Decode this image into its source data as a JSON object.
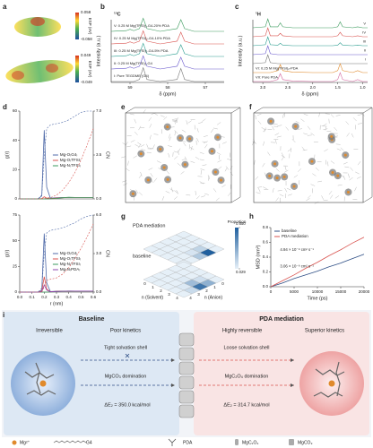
{
  "panel_labels": [
    "a",
    "b",
    "c",
    "d",
    "e",
    "f",
    "g",
    "h",
    "i"
  ],
  "esp": [
    {
      "ticks": [
        0.058,
        -0.058
      ],
      "label": "ESP (eV)"
    },
    {
      "ticks": [
        0.049,
        -0.049
      ],
      "label": "ESP (eV)"
    }
  ],
  "chart_data": [
    {
      "type": "spectra",
      "title": "¹³C",
      "xlabel": "δ (ppm)",
      "ylabel": "Intensity (a.u.)",
      "series_label_side": "left",
      "x": [
        59.5,
        59.1,
        59.0,
        58.9,
        58.75,
        58.65,
        58.55,
        58.2,
        57.75,
        57.65,
        57.55,
        57.3,
        56.5
      ],
      "xlim": [
        59.5,
        56.5
      ],
      "xticks": [
        59,
        58,
        57
      ],
      "series": [
        {
          "name": "V: 0.25 M Mg(TFSI)₂-G4-20% PDA",
          "color": "#3a9a5c",
          "values": [
            0,
            0.05,
            0.15,
            0.05,
            0.2,
            0.95,
            0.2,
            0,
            0.2,
            0.85,
            0.2,
            0,
            0
          ]
        },
        {
          "name": "IV: 0.25 M Mg(TFSI)₂-G4-10% PDA",
          "color": "#d9534f",
          "values": [
            0,
            0.05,
            0.15,
            0.05,
            0.2,
            0.95,
            0.2,
            0,
            0.2,
            0.85,
            0.2,
            0,
            0
          ]
        },
        {
          "name": "III: 0.25 M Mg(TFSI)₂-G4-5% PDA",
          "color": "#2a9d8f",
          "values": [
            0,
            0.05,
            0.15,
            0.05,
            0.2,
            0.95,
            0.2,
            0,
            0.2,
            0.85,
            0.2,
            0,
            0
          ]
        },
        {
          "name": "II: 0.25 M Mg(TFSI)₂-G4",
          "color": "#6a5acd",
          "values": [
            0,
            0.05,
            0.15,
            0.05,
            0.2,
            0.95,
            0.2,
            0,
            0.2,
            0.85,
            0.2,
            0,
            0
          ]
        },
        {
          "name": "I: Pure TEGDME (G4)",
          "color": "#777777",
          "values": [
            0,
            0,
            0,
            0,
            0.15,
            1,
            0.15,
            0,
            0.15,
            0.95,
            0.15,
            0,
            0
          ]
        }
      ]
    },
    {
      "type": "spectra",
      "title": "¹H",
      "xlabel": "δ (ppm)",
      "ylabel": "Intensity (a.u.)",
      "series_label_side": "right",
      "x": [
        3.2,
        2.95,
        2.9,
        2.85,
        2.7,
        2.65,
        2.6,
        2.4,
        2.0,
        1.6,
        1.5,
        1.45,
        1.4,
        1.2,
        1.1,
        1.0,
        0.9
      ],
      "xlim": [
        3.2,
        0.9
      ],
      "xticks": [
        {
          "value": 3,
          "label": "3.0"
        },
        2.5,
        {
          "value": 2,
          "label": "2.0"
        },
        1.5,
        {
          "value": 1,
          "label": "1.0"
        }
      ],
      "series": [
        {
          "name": "V",
          "color": "#3a9a5c",
          "values": [
            0,
            0.1,
            0.9,
            0.1,
            0.1,
            0.5,
            0.1,
            0,
            0,
            0,
            0.1,
            0.6,
            0.1,
            0,
            0.1,
            0,
            0
          ]
        },
        {
          "name": "IV",
          "color": "#d9534f",
          "values": [
            0,
            0.1,
            0.9,
            0.1,
            0.1,
            0.35,
            0.1,
            0,
            0,
            0,
            0.1,
            0.45,
            0.1,
            0,
            0.1,
            0,
            0
          ]
        },
        {
          "name": "III",
          "color": "#2a9d8f",
          "values": [
            0,
            0.1,
            0.9,
            0.1,
            0.05,
            0.25,
            0.05,
            0,
            0,
            0,
            0.05,
            0.3,
            0.05,
            0,
            0.05,
            0,
            0
          ]
        },
        {
          "name": "II",
          "color": "#6a5acd",
          "values": [
            0,
            0.1,
            0.9,
            0.1,
            0,
            0,
            0,
            0,
            0,
            0,
            0,
            0,
            0,
            0,
            0,
            0,
            0
          ]
        },
        {
          "name": "I",
          "color": "#777777",
          "values": [
            0,
            0.1,
            0.9,
            0.1,
            0,
            0,
            0,
            0,
            0,
            0,
            0,
            0,
            0,
            0,
            0,
            0,
            0
          ]
        },
        {
          "name": "VI: 0.25 M Mg(TFSI)₂-PDA",
          "color": "#e08a2c",
          "values": [
            0,
            0,
            0,
            0,
            0.2,
            0.8,
            0.2,
            0.05,
            0,
            0,
            0.2,
            0.9,
            0.2,
            0,
            0.2,
            0,
            0
          ]
        },
        {
          "name": "VII: Pure PDA",
          "color": "#d46aa0",
          "values": [
            0,
            0,
            0,
            0,
            0.2,
            0.8,
            0.2,
            0.05,
            0,
            0,
            0.2,
            0.9,
            0.2,
            0,
            0.2,
            0,
            0
          ]
        }
      ]
    },
    {
      "type": "line",
      "ylabel": "g(r)",
      "y2label": "CN",
      "legend": "center right",
      "x": [
        0,
        0.1,
        0.15,
        0.18,
        0.2,
        0.22,
        0.25,
        0.3,
        0.35,
        0.4,
        0.45,
        0.5,
        0.55,
        0.6
      ],
      "xlim": [
        0,
        0.6
      ],
      "ylim": [
        0,
        60
      ],
      "yticks": [
        0,
        20,
        40,
        60
      ],
      "y2lim": [
        0,
        7
      ],
      "y2ticks": [
        {
          "value": 0,
          "label": "0.0"
        },
        {
          "value": 3.5,
          "label": "3.5"
        },
        {
          "value": 7,
          "label": "7.0"
        }
      ],
      "series": [
        {
          "name": "Mg-O₍G4₎",
          "color": "#4f6aa8",
          "values": [
            0,
            0,
            0,
            2,
            47,
            8,
            0.5,
            0.8,
            1,
            0.9,
            1,
            1,
            1,
            1
          ]
        },
        {
          "name": "Mg-O₍TFSI₎",
          "color": "#d9534f",
          "values": [
            0,
            0,
            0,
            0.2,
            1.5,
            0.5,
            0.2,
            0.6,
            0.8,
            1,
            1,
            1,
            1,
            1
          ]
        },
        {
          "name": "Mg-N₍TFSI₎",
          "color": "#3a9a5c",
          "values": [
            0,
            0,
            0,
            0,
            0,
            0,
            0.1,
            0.3,
            0.8,
            1.1,
            1,
            1,
            1,
            1
          ]
        },
        {
          "color": "#4f6aa8",
          "axis": "y2",
          "dash": true,
          "values": [
            0,
            0,
            0,
            0.3,
            3.5,
            5.6,
            5.9,
            6,
            6.1,
            6.3,
            6.6,
            6.9,
            7,
            7
          ]
        },
        {
          "color": "#d9534f",
          "axis": "y2",
          "dash": true,
          "values": [
            0,
            0,
            0,
            0,
            0.05,
            0.1,
            0.1,
            0.3,
            0.7,
            1.3,
            2.1,
            3.1,
            4.3,
            5.6
          ]
        }
      ]
    },
    {
      "type": "line",
      "xlabel": "r (nm)",
      "ylabel": "g(r)",
      "y2label": "CN",
      "legend": "center right",
      "x": [
        0,
        0.1,
        0.15,
        0.18,
        0.2,
        0.22,
        0.25,
        0.3,
        0.35,
        0.4,
        0.45,
        0.5,
        0.55,
        0.6
      ],
      "xlim": [
        0,
        0.6
      ],
      "xticks": [
        {
          "value": 0,
          "label": "0.0"
        },
        0.1,
        0.2,
        0.3,
        0.4,
        0.5,
        0.6
      ],
      "ylim": [
        0,
        75
      ],
      "yticks": [
        0,
        25,
        50,
        75
      ],
      "y2lim": [
        0,
        6
      ],
      "y2ticks": [
        {
          "value": 0,
          "label": "0.0"
        },
        {
          "value": 3,
          "label": "3.0"
        },
        {
          "value": 6,
          "label": "6.0"
        }
      ],
      "series": [
        {
          "name": "Mg-O₍G4₎",
          "color": "#4f6aa8",
          "values": [
            0,
            0,
            0,
            2,
            57,
            9,
            0.5,
            0.8,
            1,
            0.9,
            1,
            1,
            1,
            1
          ]
        },
        {
          "name": "Mg-O₍TFSI₎",
          "color": "#d9534f",
          "values": [
            0,
            0,
            0,
            1,
            15,
            3,
            0.3,
            0.7,
            0.9,
            1,
            1,
            1,
            1,
            1
          ]
        },
        {
          "name": "Mg-N₍TFSI₎",
          "color": "#3a9a5c",
          "values": [
            0,
            0,
            0,
            0,
            0,
            0,
            0.1,
            0.3,
            0.8,
            1.1,
            1,
            1,
            1,
            1
          ]
        },
        {
          "name": "Mg-N₍PDA₎",
          "color": "#8e44ad",
          "values": [
            0,
            0,
            0,
            0.5,
            7,
            2,
            0.3,
            0.6,
            0.9,
            1,
            1,
            1,
            1,
            1
          ]
        },
        {
          "color": "#4f6aa8",
          "axis": "y2",
          "dash": true,
          "values": [
            0,
            0,
            0,
            0.3,
            3,
            4.6,
            4.8,
            4.9,
            5,
            5.2,
            5.4,
            5.7,
            5.9,
            6
          ]
        },
        {
          "color": "#d9534f",
          "axis": "y2",
          "dash": true,
          "values": [
            0,
            0,
            0,
            0,
            0.4,
            0.9,
            1,
            1.1,
            1.4,
            1.9,
            2.6,
            3.4,
            4.3,
            5.3
          ]
        }
      ]
    },
    {
      "type": "heatmap3d",
      "xlabel": "n (Solvent)",
      "ylabel": "n (Anion)",
      "colorbar_label": "Proportion",
      "ticks": [
        0,
        1,
        2,
        3,
        4
      ],
      "clim": [
        0.029,
        0.65
      ],
      "cticks": [
        {
          "value": 0.65,
          "label": "0.650"
        },
        0.029
      ],
      "layers": [
        {
          "name": "PDA mediation",
          "values": [
            [
              0.029,
              0.029,
              0.029,
              0.029,
              0.029
            ],
            [
              0.029,
              0.029,
              0.029,
              0.15,
              0.65
            ],
            [
              0.029,
              0.029,
              0.029,
              0.08,
              0.2
            ],
            [
              0.029,
              0.029,
              0.029,
              0.029,
              0.029
            ],
            [
              0.029,
              0.029,
              0.029,
              0.029,
              0.029
            ]
          ]
        },
        {
          "name": "baseline",
          "values": [
            [
              0.029,
              0.029,
              0.029,
              0.029,
              0.029
            ],
            [
              0.029,
              0.029,
              0.029,
              0.1,
              0.3
            ],
            [
              0.029,
              0.029,
              0.05,
              0.25,
              0.55
            ],
            [
              0.029,
              0.029,
              0.029,
              0.06,
              0.12
            ],
            [
              0.029,
              0.029,
              0.029,
              0.029,
              0.029
            ]
          ]
        }
      ]
    },
    {
      "type": "line",
      "xlabel": "Time (ps)",
      "ylabel": "MSD (nm²)",
      "legend": "upper left",
      "x": [
        0,
        2500,
        5000,
        7500,
        10000,
        12500,
        15000,
        17500,
        20000
      ],
      "xlim": [
        0,
        20000
      ],
      "xticks": [
        0,
        5000,
        10000,
        15000,
        20000
      ],
      "ylim": [
        0,
        0.8
      ],
      "yticks": [
        {
          "value": 0,
          "label": "0.0"
        },
        0.2,
        0.4,
        0.6,
        0.8
      ],
      "series": [
        {
          "name": "baseline",
          "color": "#2f4f86",
          "values": [
            0,
            0.05,
            0.11,
            0.16,
            0.21,
            0.27,
            0.32,
            0.38,
            0.44
          ]
        },
        {
          "name": "PDA mediation",
          "color": "#d9534f",
          "values": [
            0,
            0.08,
            0.16,
            0.25,
            0.33,
            0.42,
            0.5,
            0.59,
            0.67
          ]
        }
      ],
      "annotations": [
        "4.94 × 10⁻⁸ cm² s⁻¹",
        "3.06 × 10⁻⁸ cm² s⁻¹"
      ]
    }
  ],
  "scheme": {
    "baseline": {
      "title": "Baseline",
      "features": [
        "Irreversible",
        "Poor kinetics"
      ],
      "shell": "Tight solvation shell",
      "domination": "MgCO₃ domination",
      "energy": "ΔE₂ = 350.0 kcal/mol"
    },
    "pda": {
      "title": "PDA mediation",
      "features": [
        "Highly reversible",
        "Superior kinetics"
      ],
      "shell": "Loose solvation shell",
      "domination": "MgC₂O₄ domination",
      "energy": "ΔE₂ = 314.7 kcal/mol"
    },
    "legend": [
      "Mg²⁺",
      "G4",
      "PDA",
      "MgC₂O₄",
      "MgCO₃"
    ]
  }
}
